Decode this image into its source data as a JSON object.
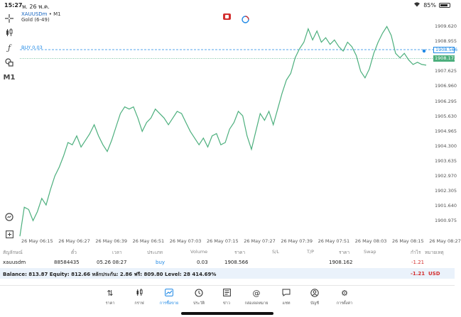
{
  "status_bar": {
    "time": "15:27",
    "date": "พ. 26 พ.ค.",
    "battery": "85%",
    "battery_level": 0.85
  },
  "toolbar": {
    "crosshair_icon": "crosshair-icon",
    "candles_icon": "candlestick-icon",
    "indicator_icon": "function-icon",
    "objects_icon": "shapes-icon",
    "timeframe": "M1",
    "zoom_icon": "zoom-icon",
    "add_icon": "add-icon"
  },
  "chart": {
    "symbol": "XAUUSDm",
    "timeframe_text": "• M1",
    "description": "Gold (6-49)",
    "buy_line_label": "BUY 0.03",
    "current_price": "1908.172",
    "buy_price_tag": "1908.566",
    "price_ticks": [
      "1909.620",
      "1908.955",
      "1908.290",
      "1907.625",
      "1906.960",
      "1906.295",
      "1905.630",
      "1904.965",
      "1904.300",
      "1903.635",
      "1902.970",
      "1902.305",
      "1901.640",
      "1900.975"
    ],
    "time_ticks": [
      "26 May 06:15",
      "26 May 06:27",
      "26 May 06:39",
      "26 May 06:51",
      "26 May 07:03",
      "26 May 07:15",
      "26 May 07:27",
      "26 May 07:39",
      "26 May 07:51",
      "26 May 08:03",
      "26 May 08:15",
      "26 May 08:27"
    ],
    "line_color": "#4caf7d",
    "buy_line_color": "#1e88e5"
  },
  "chart_data": {
    "type": "line",
    "xlabel": "",
    "ylabel": "",
    "ylim": [
      1900.6,
      1910.2
    ],
    "values": [
      1900.5,
      1901.8,
      1901.7,
      1901.2,
      1901.6,
      1902.2,
      1901.9,
      1902.6,
      1903.2,
      1903.6,
      1904.1,
      1904.7,
      1904.6,
      1905.0,
      1904.5,
      1904.8,
      1905.1,
      1905.5,
      1905.0,
      1904.6,
      1904.3,
      1904.8,
      1905.4,
      1906.0,
      1906.3,
      1906.2,
      1906.3,
      1905.8,
      1905.2,
      1905.6,
      1905.8,
      1906.2,
      1906.0,
      1905.8,
      1905.5,
      1905.8,
      1906.1,
      1906.0,
      1905.6,
      1905.2,
      1904.9,
      1904.6,
      1904.9,
      1904.5,
      1905.0,
      1905.1,
      1904.6,
      1904.7,
      1905.3,
      1905.6,
      1906.1,
      1905.9,
      1905.0,
      1904.4,
      1905.2,
      1906.0,
      1905.7,
      1906.1,
      1905.5,
      1906.2,
      1906.9,
      1907.5,
      1907.8,
      1908.5,
      1908.9,
      1909.2,
      1909.8,
      1909.3,
      1909.7,
      1909.2,
      1909.4,
      1909.1,
      1909.3,
      1909.0,
      1908.8,
      1909.2,
      1909.0,
      1908.6,
      1907.9,
      1907.6,
      1908.0,
      1908.7,
      1909.2,
      1909.6,
      1909.9,
      1909.5,
      1908.7,
      1908.5,
      1908.7,
      1908.4,
      1908.2,
      1908.3,
      1908.2,
      1908.17
    ]
  },
  "table": {
    "headers": [
      "สัญลักษณ์",
      "ตั๋ว",
      "เวลา",
      "ประเภท",
      "Volume",
      "ราคา",
      "S/L",
      "T/P",
      "ราคา",
      "Swap",
      "กำไร",
      "หมายเหตุ"
    ],
    "row": {
      "symbol": "xauusdm",
      "ticket": "88584435",
      "time": "05.26 08:27",
      "type": "buy",
      "volume": "0.03",
      "open_price": "1908.566",
      "current_price": "1908.162",
      "profit": "-1.21"
    },
    "balance_text": "Balance: 813.87 Equity: 812.66 หลักประกัน: 2.86 ฟรี: 809.80 Level: 28 414.69%",
    "total_profit": "-1.21",
    "currency": "USD"
  },
  "nav": [
    {
      "label": "ราคา",
      "icon": "quotes-icon"
    },
    {
      "label": "กราฟ",
      "icon": "chart-icon"
    },
    {
      "label": "การซื้อขาย",
      "icon": "trade-icon",
      "active": true
    },
    {
      "label": "ประวัติ",
      "icon": "history-icon"
    },
    {
      "label": "ข่าว",
      "icon": "news-icon"
    },
    {
      "label": "กล่องจดหมาย",
      "icon": "mailbox-icon"
    },
    {
      "label": "แชท",
      "icon": "chat-icon"
    },
    {
      "label": "บัญชี",
      "icon": "account-icon"
    },
    {
      "label": "การตั้งค่า",
      "icon": "settings-icon"
    }
  ]
}
